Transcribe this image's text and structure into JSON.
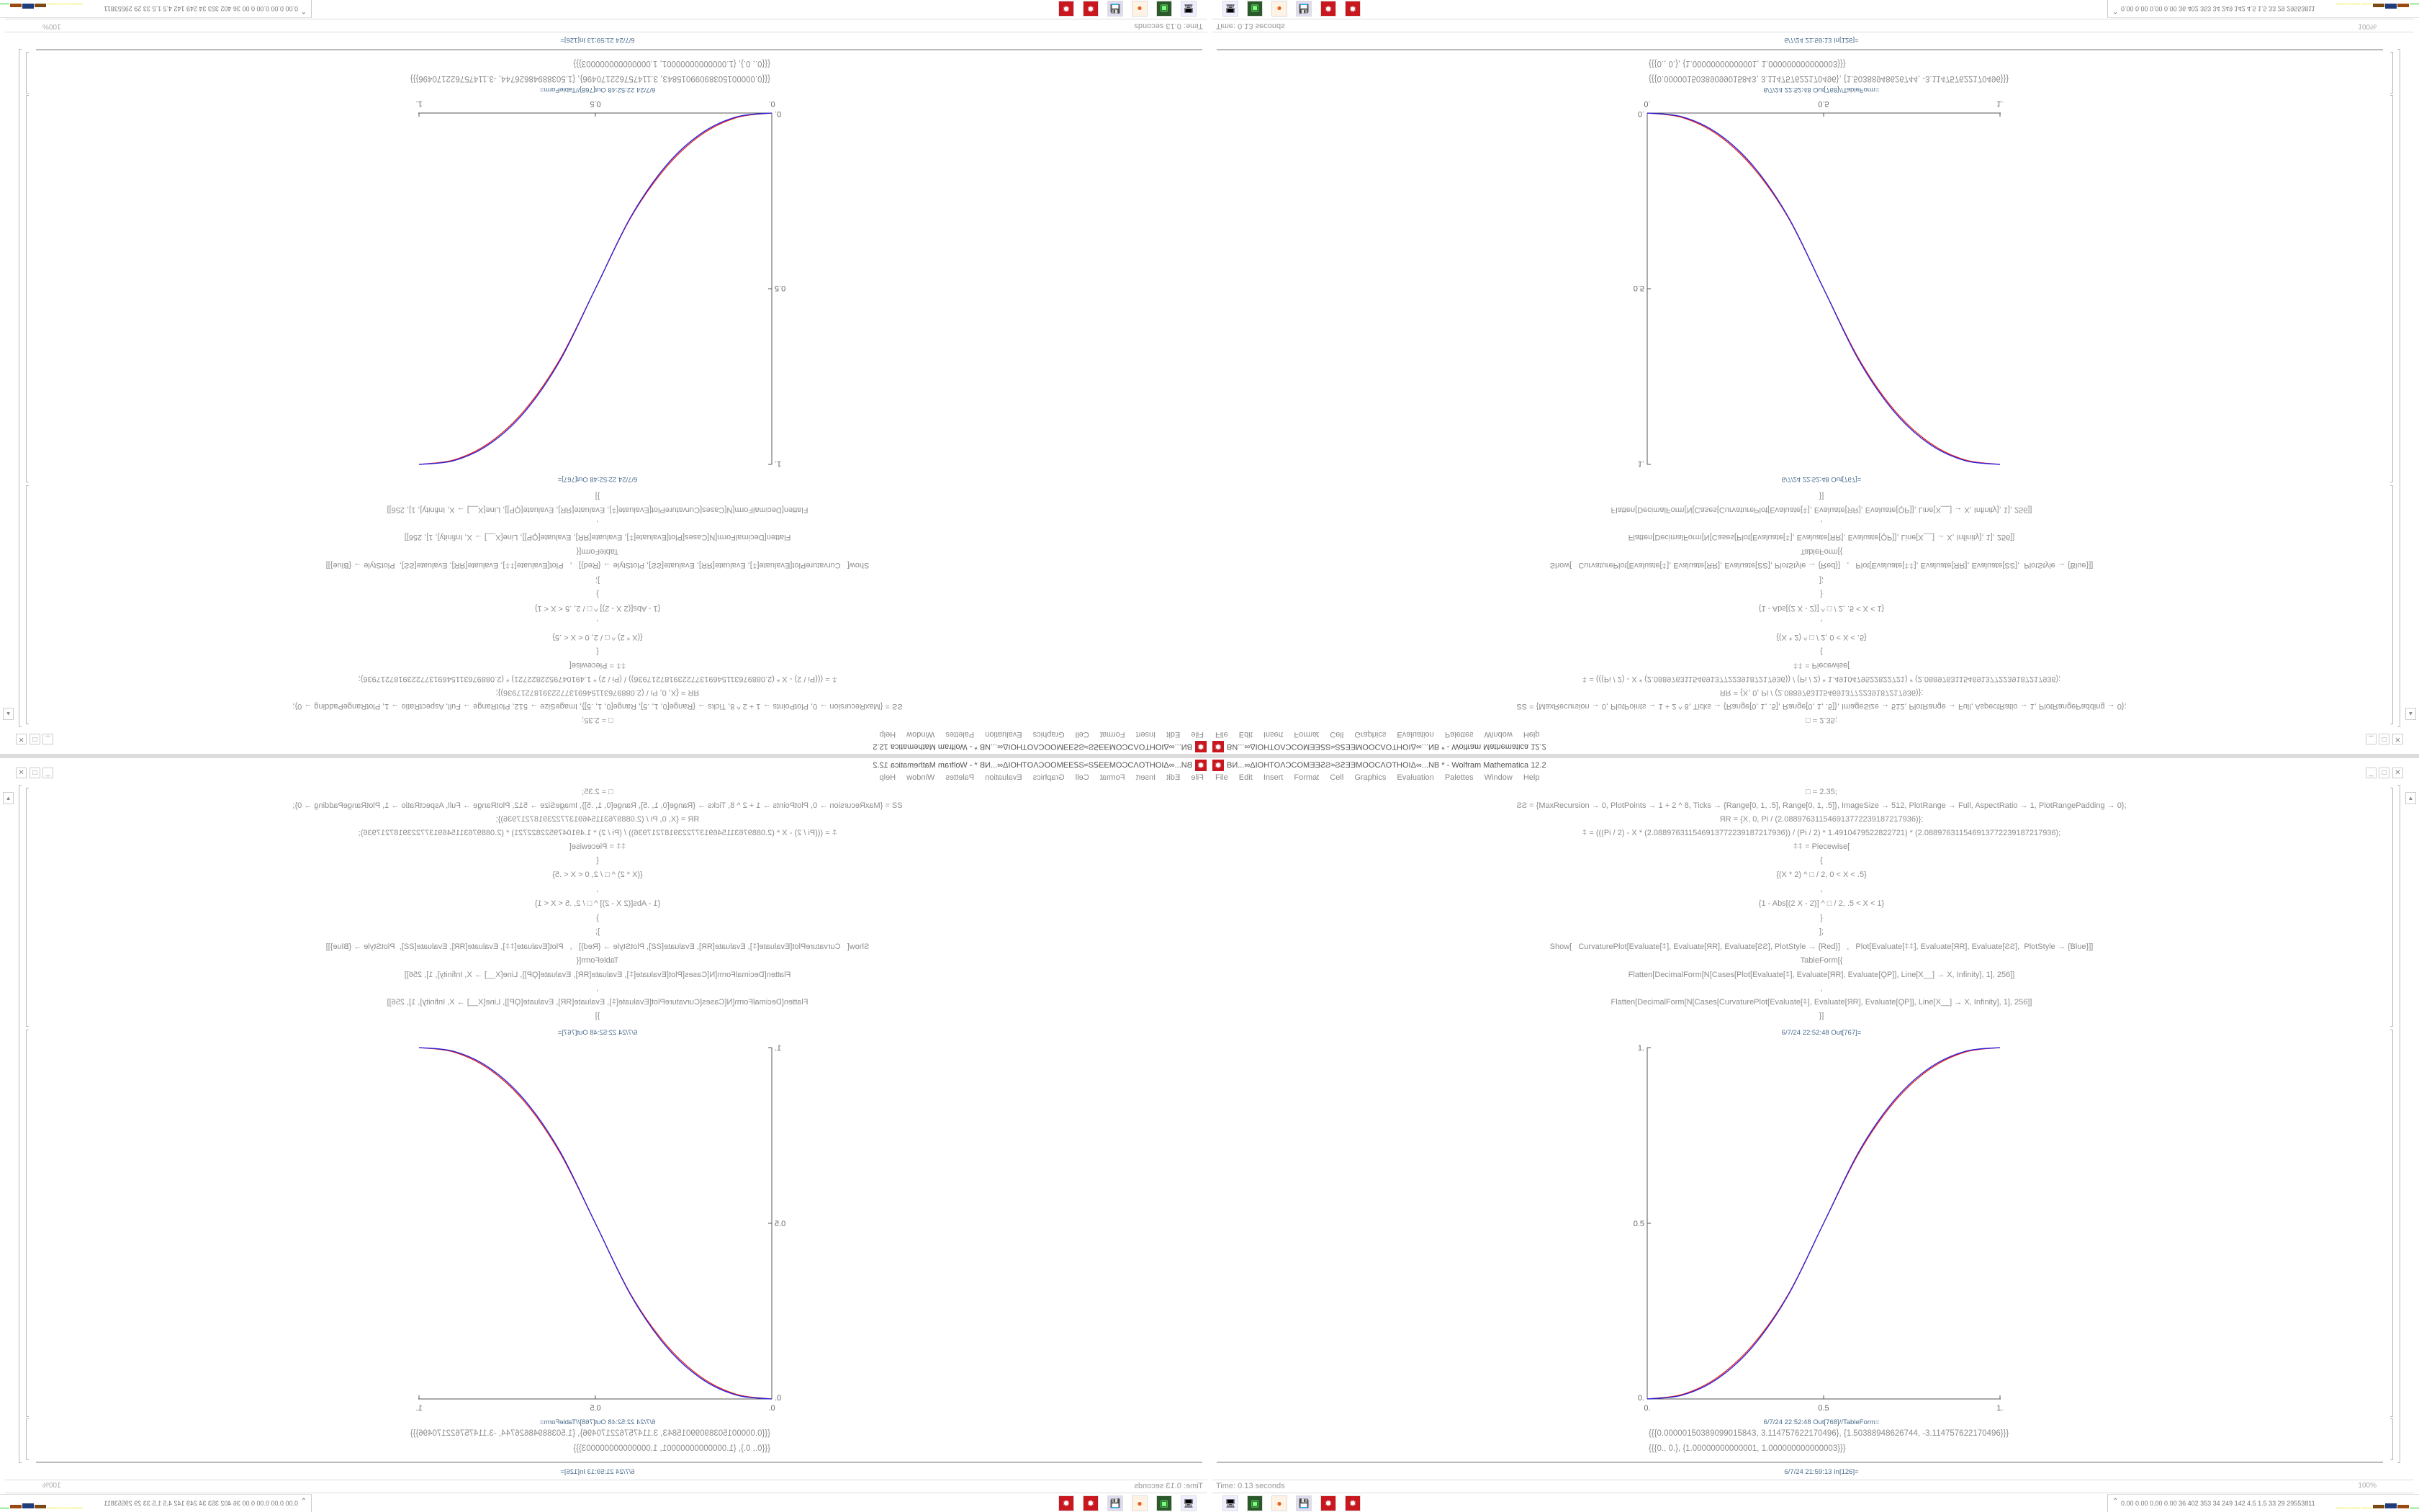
{
  "window": {
    "title": "ВИ...∞ΔIOHTOΛƆCOMƎƎꙄƧ≈ƧꙄƎƎMOOCΛOTHOIΔ∞...NB * - Wolfram Mathematica 12.2",
    "controls": {
      "minimize": "_",
      "maximize": "□",
      "close": "✕"
    }
  },
  "menu": [
    "File",
    "Edit",
    "Insert",
    "Format",
    "Cell",
    "Graphics",
    "Evaluation",
    "Palettes",
    "Window",
    "Help"
  ],
  "notebook": {
    "input_lines": [
      "□ = 2.35;",
      "ƧƧ = {MaxRecursion → 0, PlotPoints → 1 + 2 ^ 8, Ticks → {Range[0, 1, .5], Range[0, 1, .5]}, ImageSize → 512, PlotRange → Full, AspectRatio → 1, PlotRangePadding → 0};",
      "ЯR = {X, 0, Pi / (2.088976311546913772239187217936)};",
      "⍏ = (((Pi / 2) - X * (2.088976311546913772239187217936)) / (Pi / 2) * 1.4910479522822721) * (2.088976311546913772239187217936);",
      "⍏⍏ = Piecewise[",
      "{",
      "{(X * 2) ^ □ / 2, 0 < X < .5}",
      ",",
      "{1 - Abs[(2 X - 2)] ^ □ / 2, .5 < X < 1}",
      "}",
      "];",
      "Show[   CurvaturePlot[Evaluate[⍏], Evaluate[ЯR], Evaluate[ƧƧ], PlotStyle → {Red}]   ,   Plot[Evaluate[⍏⍏], Evaluate[ЯR], Evaluate[ƧƧ],  PlotStyle → {Blue}]]",
      "TableForm[{",
      "Flatten[DecimalForm[N[Cases[Plot[Evaluate[⍏], Evaluate[ЯR], Evaluate[ϘP]], Line[X__] → X, Infinity], 1], 256]]",
      ",",
      "Flatten[DecimalForm[N[Cases[CurvaturePlot[Evaluate[⍏], Evaluate[ЯR], Evaluate[ϘP]], Line[X__] → X, Infinity], 1], 256]]",
      "}]"
    ],
    "out767_label": "6/7/24 22:52:48 Out[767]=",
    "out768_label": "6/7/24 22:52:48 Out[768]//TableForm=",
    "out768_lines": [
      "{{{0.0000015038909901584З, 3.114757622170496}, {1.50388948626744, -3.114757622170496}}}",
      "{{{0., 0.}, {1.00000000000001, 1.000000000000003}}}"
    ],
    "next_cell_label": "6/7/24 21:59:13 In[126]="
  },
  "chart_data": {
    "type": "line",
    "xlim": [
      0,
      1
    ],
    "ylim": [
      0,
      1
    ],
    "x_ticks": [
      "0.",
      "0.5",
      "1."
    ],
    "y_ticks": [
      "0.",
      "0.5",
      "1."
    ],
    "grid": false,
    "x": [
      0,
      0.1,
      0.2,
      0.3,
      0.4,
      0.5,
      0.6,
      0.7,
      0.8,
      0.9,
      1
    ],
    "series": [
      {
        "color": "#e0201e",
        "values": [
          0,
          0.013,
          0.062,
          0.155,
          0.298,
          0.5,
          0.7,
          0.845,
          0.938,
          0.987,
          1
        ]
      },
      {
        "color": "#2a1ee0",
        "values": [
          0,
          0.011,
          0.058,
          0.15,
          0.296,
          0.5,
          0.704,
          0.85,
          0.942,
          0.989,
          1
        ]
      }
    ]
  },
  "status": {
    "time": "Time: 0.13 seconds",
    "zoom": "100%"
  },
  "taskbar": {
    "icons": [
      "remote-desktop-icon",
      "terminal-icon",
      "firefox-icon",
      "floppy-64-icon",
      "mathematica-icon",
      "mathematica-icon"
    ],
    "tray_text": "0.00 0.00 0.00 0.00  36  402  353  34  249  142  4.5  1.5  33  29  29553811",
    "tray_expand": "⌃"
  }
}
